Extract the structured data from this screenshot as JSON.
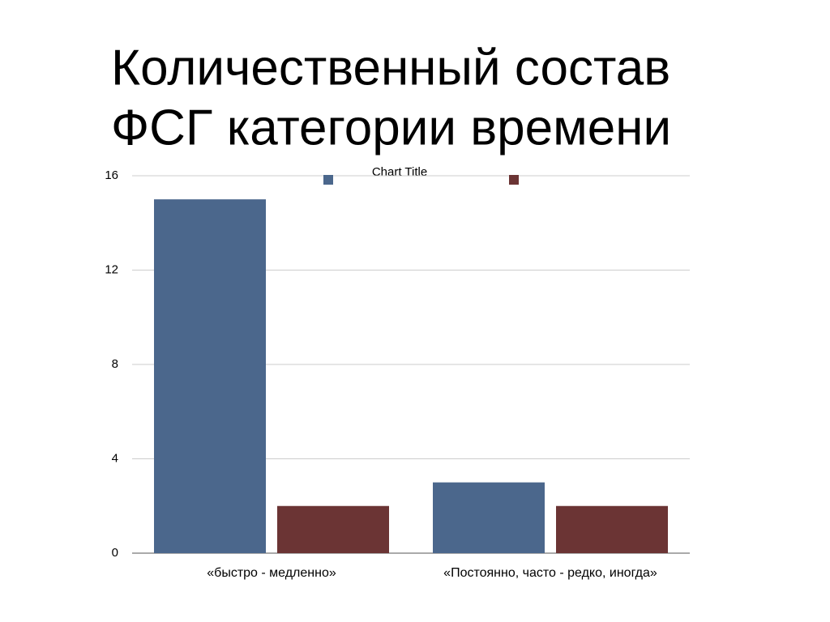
{
  "title": [
    "Количественный состав",
    "ФСГ категории времени"
  ],
  "chart_data": {
    "type": "bar",
    "title": "Chart Title",
    "categories": [
      "«быстро - медленно»",
      "«Постоянно, часто - редко, иногда»"
    ],
    "series": [
      {
        "color": "#4b678c",
        "values": [
          15,
          3
        ]
      },
      {
        "color": "#6b3434",
        "values": [
          2,
          2
        ]
      }
    ],
    "ylim": [
      0,
      16
    ],
    "yticks": [
      0,
      4,
      8,
      12,
      16
    ],
    "grid": true
  }
}
